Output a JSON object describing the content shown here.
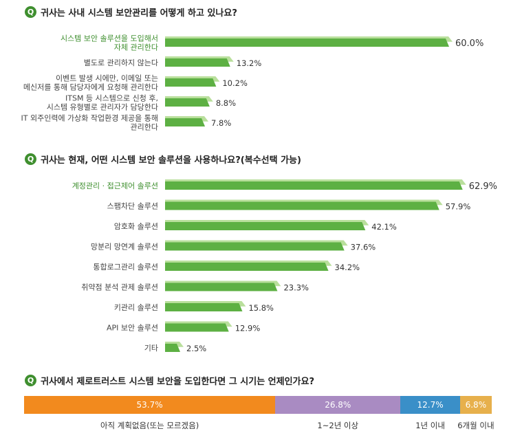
{
  "q1": {
    "icon": "Q",
    "title": "귀사는 사내 시스템 보안관리를 어떻게 하고 있나요?"
  },
  "q2": {
    "icon": "Q",
    "title": "귀사는 현재, 어떤 시스템 보안 솔루션을 사용하나요?(복수선택 가능)"
  },
  "q3": {
    "icon": "Q",
    "title": "귀사에서 제로트러스트 시스템 보안을 도입한다면 그 시기는 언제인가요?"
  },
  "colors": {
    "bar": "#5db043",
    "bar_highlight": "#b9df9c",
    "label_highlight": "#3f8f2f",
    "label": "#444444",
    "icon": "#3f8f2f"
  },
  "chart_data": [
    {
      "type": "bar",
      "orientation": "horizontal",
      "title": "귀사는 사내 시스템 보안관리를 어떻게 하고 있나요?",
      "categories": [
        [
          "시스템 보안 솔루션을 도입해서",
          "자체 관리한다"
        ],
        [
          "별도로 관리하지 않는다"
        ],
        [
          "이벤트 발생 시에만, 이메일 또는",
          "메신저를 통해 담당자에게 요청해 관리한다"
        ],
        [
          "ITSM 등 시스템으로 신청 후,",
          "시스템 유형별로 관리자가 담당한다"
        ],
        [
          "IT 외주인력에 가상화 작업환경 제공을 통해",
          "관리한다"
        ]
      ],
      "values": [
        60.0,
        13.2,
        10.2,
        8.8,
        7.8
      ],
      "value_labels": [
        "60.0%",
        "13.2%",
        "10.2%",
        "8.8%",
        "7.8%"
      ],
      "xlim": [
        0,
        100
      ],
      "unit": "%"
    },
    {
      "type": "bar",
      "orientation": "horizontal",
      "title": "귀사는 현재, 어떤 시스템 보안 솔루션을 사용하나요?(복수선택 가능)",
      "categories": [
        [
          "계정관리 · 접근제어 솔루션"
        ],
        [
          "스팸차단 솔루션"
        ],
        [
          "암호화 솔루션"
        ],
        [
          "망분리 망연계 솔루션"
        ],
        [
          "통합로그관리 솔루션"
        ],
        [
          "취약점 분석 관제 솔루션"
        ],
        [
          "키관리 솔루션"
        ],
        [
          "API 보안 솔루션"
        ],
        [
          "기타"
        ]
      ],
      "values": [
        62.9,
        57.9,
        42.1,
        37.6,
        34.2,
        23.3,
        15.8,
        12.9,
        2.5
      ],
      "value_labels": [
        "62.9%",
        "57.9%",
        "42.1%",
        "37.6%",
        "34.2%",
        "23.3%",
        "15.8%",
        "12.9%",
        "2.5%"
      ],
      "xlim": [
        0,
        100
      ],
      "unit": "%"
    },
    {
      "type": "bar",
      "orientation": "stacked-horizontal",
      "title": "귀사에서 제로트러스트 시스템 보안을 도입한다면 그 시기는 언제인가요?",
      "series": [
        {
          "name": "아직 계획없음(또는 모르겠음)",
          "value": 53.7,
          "label": "53.7%",
          "color": "#f28a1e"
        },
        {
          "name": "1~2년 이상",
          "value": 26.8,
          "label": "26.8%",
          "color": "#a98bc2"
        },
        {
          "name": "1년 이내",
          "value": 12.7,
          "label": "12.7%",
          "color": "#3a8fc8"
        },
        {
          "name": "6개월 이내",
          "value": 6.8,
          "label": "6.8%",
          "color": "#e7b04c"
        }
      ],
      "unit": "%"
    }
  ]
}
